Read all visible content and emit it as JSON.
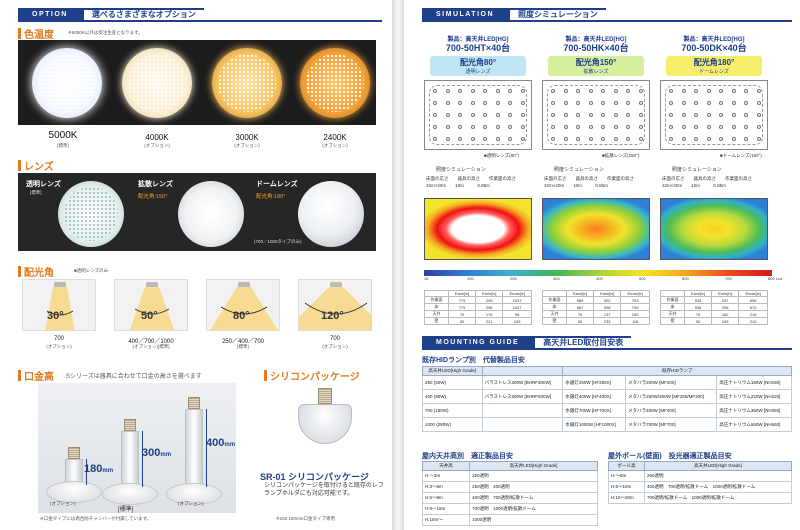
{
  "option": {
    "tag": "OPTION",
    "title": "選べるさまざまなオプション"
  },
  "colortemp": {
    "heading": "色温度",
    "note": "※5000K以外は受注生産となります。",
    "items": [
      {
        "k": "5000K",
        "sub": "[標準]"
      },
      {
        "k": "4000K",
        "sub": "(オプション)"
      },
      {
        "k": "3000K",
        "sub": "(オプション)"
      },
      {
        "k": "2400K",
        "sub": "(オプション)"
      }
    ]
  },
  "lens": {
    "heading": "レンズ",
    "items": [
      {
        "title": "透明レンズ",
        "sub": "[標準]",
        "angle": ""
      },
      {
        "title": "拡散レンズ",
        "sub": "",
        "angle": "配光角:150°"
      },
      {
        "title": "ドームレンズ",
        "sub": "",
        "angle": "配光角:180°"
      }
    ],
    "note": "(700／1000タイプのみ)"
  },
  "beam": {
    "heading": "配光角",
    "note": "■透明レンズのみ",
    "items": [
      {
        "deg": "30°",
        "label": "700",
        "sub": "(オプション)"
      },
      {
        "deg": "50°",
        "label": "400／700／1000",
        "sub": "(オプション)[標準]"
      },
      {
        "deg": "80°",
        "label": "250／400／700",
        "sub": "[標準]"
      },
      {
        "deg": "120°",
        "label": "700",
        "sub": "(オプション)"
      }
    ]
  },
  "base": {
    "heading": "口金高",
    "desc": "Sシリーズは器具に合わせて口金の高さを選べます",
    "heights": [
      "180",
      "300",
      "400"
    ],
    "unit": "mm",
    "labels": [
      "(オプション)",
      "[標準]",
      "(オプション)"
    ],
    "note": "※口金タイプには適合防チャンバーが付属しています。"
  },
  "silicone": {
    "heading": "シリコンパッケージ",
    "title": "SR-01 シリコンパッケージ",
    "desc": "シリコンパッケージを取付けると既存のレフランプホルダにも対応可能です。",
    "note": "※250 180mm口金タイプ専用"
  },
  "simulation": {
    "tag": "SIMULATION",
    "title": "照度シミュレーション",
    "cols": [
      {
        "model1": "製品：高天井LED[HG]",
        "model2": "700-50HT×40台",
        "angle": "配光角80°",
        "lens": "透明レンズ",
        "pill": "#bfe6f2",
        "cap": "■透明レンズ(80°)"
      },
      {
        "model1": "製品：高天井LED[HG]",
        "model2": "700-50HK×40台",
        "angle": "配光角150°",
        "lens": "拡散レンズ",
        "pill": "#d6ef9c",
        "cap": "■拡散レンズ(150°)"
      },
      {
        "model1": "製品：高天井LED[HG]",
        "model2": "700-50DK×40台",
        "angle": "配光角180°",
        "lens": "ドームレンズ",
        "pill": "#f6ee6a",
        "cap": "■ドームレンズ(180°)"
      }
    ],
    "info_title": "照度シミュレーション",
    "info_h": [
      "床面の広さ",
      "器具の高さ",
      "作業面の高さ"
    ],
    "info_v": [
      "32m×20m",
      "10m",
      "0.85m"
    ],
    "legend": [
      "10",
      "100",
      "200",
      "300",
      "400",
      "500",
      "600",
      "700",
      "800"
    ],
    "legend_unit": "Lux",
    "stat_h": [
      "",
      "Eave[lx]",
      "Emin[lx]",
      "Emax[lx]"
    ],
    "stats": [
      [
        [
          "作業面",
          "779",
          "293",
          "1037"
        ],
        [
          "床",
          "779",
          "296",
          "1027"
        ],
        [
          "天井",
          "70",
          "176",
          "96"
        ],
        [
          "壁",
          "50",
          "221",
          "105"
        ]
      ],
      [
        [
          "作業面",
          "589",
          "302",
          "753"
        ],
        [
          "床",
          "587",
          "398",
          "749"
        ],
        [
          "天井",
          "70",
          "137",
          "150"
        ],
        [
          "壁",
          "50",
          "233",
          "118"
        ]
      ],
      [
        [
          "作業面",
          "535",
          "257",
          "696"
        ],
        [
          "床",
          "536",
          "296",
          "672"
        ],
        [
          "天井",
          "70",
          "162",
          "216"
        ],
        [
          "壁",
          "50",
          "249",
          "210"
        ]
      ]
    ]
  },
  "mounting": {
    "tag": "MOUNTING GUIDE",
    "title": "高天井LED取付目安表",
    "t1": "既存HIDランプ別　代替製品目安",
    "t1_head": [
      "高天井LED[High Grade]",
      "",
      "既存HIDランプ",
      ""
    ],
    "t1_rows": [
      [
        "250 (50W)",
        "バラストレス300W [BHRF300W]",
        "水銀灯250W [HF250X]",
        "メタハラ200W [MF200]",
        "高圧ナトリウム180W [NH180]"
      ],
      [
        "400 (90W)",
        "バラストレス500W [BHRF500W]",
        "水銀灯400W [HF400X]",
        "メタハラ250W/300W [MF250/MF300]",
        "高圧ナトリウム220W [NH220]"
      ],
      [
        "700 (150W)",
        "",
        "水銀灯700W [HF700X]",
        "メタハラ400W [MF400]",
        "高圧ナトリウム360W [NH360]"
      ],
      [
        "1000 (280W)",
        "",
        "水銀灯1000W [HF1000X]",
        "メタハラ700W [MF700]",
        "高圧ナトリウム660W [NH660]"
      ]
    ],
    "t2": "屋内天井高別　適正製品目安",
    "t2_head": [
      "天井高",
      "高天井LED[High Grade]"
    ],
    "t2_rows": [
      [
        "H:～3m",
        "250透明"
      ],
      [
        "H:3～5m",
        "250透明　400透明"
      ],
      [
        "H:5～9m",
        "400透明　700透明/拡散ドーム"
      ],
      [
        "H:9～15m",
        "700透明　1000透明/拡散ドーム"
      ],
      [
        "H:15m～",
        "1000透明"
      ]
    ],
    "t3": "屋外ポール(壁面)　投光器適正製品目安",
    "t3_head": [
      "ポール高",
      "高天井LED[High Grade]"
    ],
    "t3_rows": [
      [
        "H:～5m",
        "250透明"
      ],
      [
        "H:5～10m",
        "400透明　700透明/拡散ドーム　1000透明/拡散ドーム"
      ],
      [
        "H:10～20m",
        "700透明/拡散ドーム　1000透明/拡散ドーム"
      ]
    ]
  }
}
